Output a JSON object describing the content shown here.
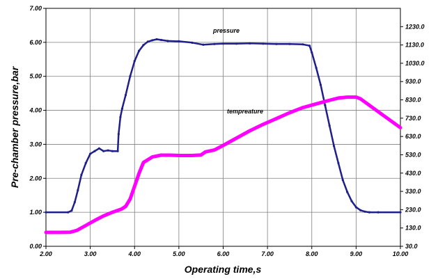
{
  "chart_data": {
    "type": "line",
    "xlabel": "Operating time,s",
    "ylabel": "Pre-chamber pressure,bar",
    "xlim": [
      2.0,
      10.0
    ],
    "ylim": [
      0.0,
      7.0
    ],
    "y2lim": [
      30.0,
      1330.0
    ],
    "grid": true,
    "x_ticks": [
      "2.00",
      "3.00",
      "4.00",
      "5.00",
      "6.00",
      "7.00",
      "8.00",
      "9.00",
      "10.00"
    ],
    "y_ticks": [
      "0.00",
      "1.00",
      "2.00",
      "3.00",
      "4.00",
      "5.00",
      "6.00",
      "7.00"
    ],
    "y2_ticks": [
      "30.0",
      "130.0",
      "230.0",
      "330.0",
      "430.0",
      "530.0",
      "630.0",
      "730.0",
      "830.0",
      "930.0",
      "1030.0",
      "1130.0",
      "1230.0"
    ],
    "series": [
      {
        "name": "pressure",
        "axis": "left",
        "color": "#1f1f8a",
        "x": [
          2.0,
          2.5,
          2.58,
          2.65,
          2.72,
          2.8,
          2.9,
          3.0,
          3.1,
          3.2,
          3.3,
          3.4,
          3.5,
          3.62,
          3.64,
          3.68,
          3.72,
          3.8,
          3.9,
          4.0,
          4.1,
          4.2,
          4.3,
          4.4,
          4.5,
          4.6,
          4.75,
          5.0,
          5.3,
          5.55,
          5.8,
          6.0,
          6.3,
          6.6,
          6.9,
          7.2,
          7.5,
          7.8,
          7.95,
          8.0,
          8.1,
          8.2,
          8.3,
          8.4,
          8.5,
          8.6,
          8.7,
          8.8,
          8.9,
          9.0,
          9.1,
          9.2,
          9.3,
          9.5,
          10.0
        ],
        "values": [
          1.0,
          1.0,
          1.05,
          1.3,
          1.65,
          2.1,
          2.45,
          2.72,
          2.8,
          2.88,
          2.8,
          2.82,
          2.8,
          2.8,
          3.3,
          3.8,
          4.05,
          4.45,
          5.0,
          5.45,
          5.75,
          5.92,
          6.02,
          6.06,
          6.09,
          6.07,
          6.04,
          6.03,
          5.99,
          5.93,
          5.95,
          5.96,
          5.96,
          5.97,
          5.96,
          5.95,
          5.95,
          5.94,
          5.9,
          5.7,
          5.25,
          4.75,
          4.15,
          3.55,
          2.95,
          2.45,
          1.95,
          1.6,
          1.33,
          1.15,
          1.06,
          1.02,
          1.0,
          1.0,
          1.0
        ]
      },
      {
        "name": "tempreature",
        "axis": "right",
        "color": "#ff00ff",
        "x": [
          2.0,
          2.3,
          2.55,
          2.7,
          2.9,
          3.1,
          3.3,
          3.5,
          3.7,
          3.8,
          3.9,
          4.0,
          4.1,
          4.2,
          4.4,
          4.6,
          4.8,
          5.0,
          5.3,
          5.5,
          5.6,
          5.8,
          6.0,
          6.3,
          6.6,
          6.9,
          7.2,
          7.5,
          7.8,
          8.1,
          8.4,
          8.6,
          8.8,
          9.0,
          9.1,
          9.3,
          9.6,
          10.0
        ],
        "values": [
          106,
          106,
          107,
          117,
          144,
          171,
          196,
          216,
          233,
          248,
          288,
          358,
          428,
          488,
          518,
          528,
          528,
          526,
          526,
          529,
          546,
          556,
          581,
          621,
          661,
          696,
          728,
          760,
          788,
          808,
          828,
          840,
          845,
          845,
          836,
          800,
          748,
          678
        ]
      }
    ],
    "annotations": [
      "pressure",
      "tempreature"
    ]
  }
}
